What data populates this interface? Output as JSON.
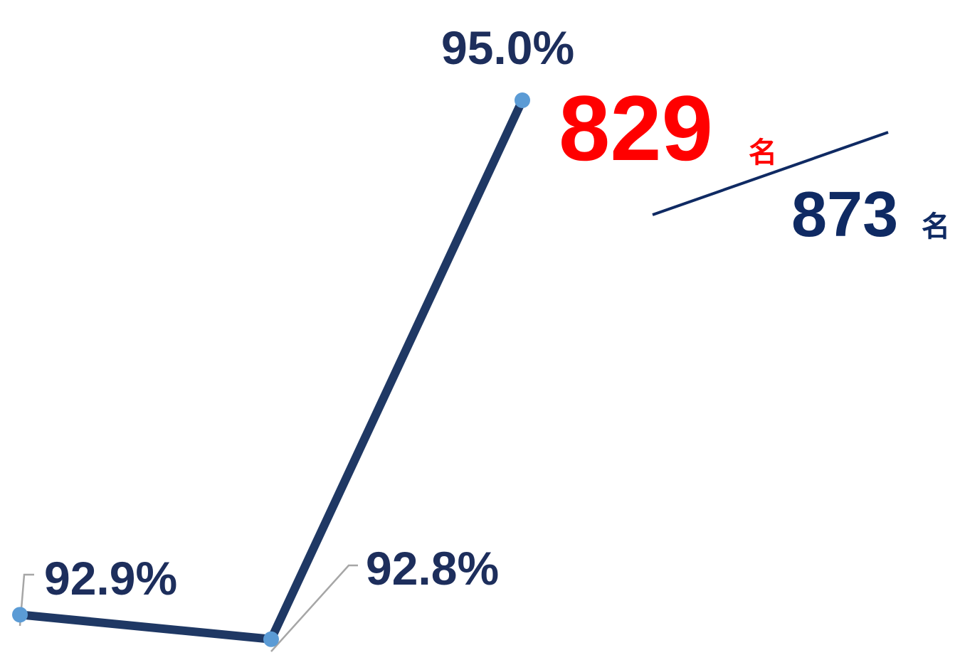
{
  "chart_data": {
    "type": "line",
    "categories": [
      "",
      "",
      ""
    ],
    "series": [
      {
        "values": [
          92.9,
          92.8,
          95.0
        ]
      }
    ],
    "data_labels": [
      "92.9%",
      "92.8%",
      "95.0%"
    ],
    "ylim": [
      92.75,
      95.0
    ],
    "grid": false,
    "legend": "none",
    "line_color": "#1f3864",
    "marker_color": "#5b9bd5",
    "leader_line_color": "#a6a6a6"
  },
  "fraction": {
    "numerator": "829",
    "numerator_unit": "名",
    "denominator": "873",
    "denominator_unit": "名",
    "numerator_color": "#ff0000",
    "denominator_color": "#0f2a63"
  }
}
